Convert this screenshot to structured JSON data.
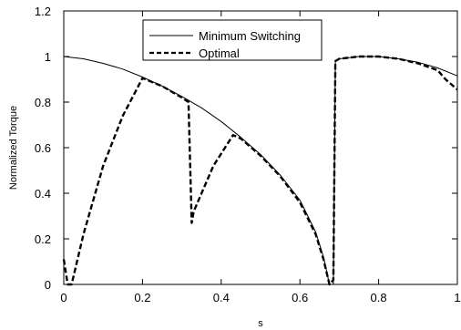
{
  "chart_data": {
    "type": "line",
    "xlabel": "s",
    "ylabel": "Normalized Torque",
    "xlim": [
      0,
      1
    ],
    "ylim": [
      0,
      1.2
    ],
    "xticks": [
      "0",
      "0.2",
      "0.4",
      "0.6",
      "0.8",
      "1"
    ],
    "yticks": [
      "0",
      "0.2",
      "0.4",
      "0.6",
      "0.8",
      "1",
      "1.2"
    ],
    "grid": false,
    "legend_position": "top-center",
    "series": [
      {
        "name": "Minimum Switching",
        "style": "solid",
        "color": "#000000",
        "points": [
          [
            0,
            1.0
          ],
          [
            0.05,
            0.99
          ],
          [
            0.1,
            0.97
          ],
          [
            0.15,
            0.945
          ],
          [
            0.2,
            0.91
          ],
          [
            0.25,
            0.87
          ],
          [
            0.3,
            0.825
          ],
          [
            0.35,
            0.775
          ],
          [
            0.4,
            0.715
          ],
          [
            0.45,
            0.645
          ],
          [
            0.5,
            0.57
          ],
          [
            0.55,
            0.48
          ],
          [
            0.6,
            0.37
          ],
          [
            0.64,
            0.23
          ],
          [
            0.66,
            0.12
          ],
          [
            0.675,
            0.0
          ],
          [
            0.685,
            0.0
          ],
          [
            0.69,
            0.98
          ],
          [
            0.7,
            0.99
          ],
          [
            0.75,
            1.0
          ],
          [
            0.8,
            1.0
          ],
          [
            0.85,
            0.99
          ],
          [
            0.9,
            0.975
          ],
          [
            0.95,
            0.95
          ],
          [
            1.0,
            0.915
          ]
        ]
      },
      {
        "name": "Optimal",
        "style": "dashed",
        "color": "#000000",
        "points": [
          [
            0,
            0.11
          ],
          [
            0.01,
            0.0
          ],
          [
            0.02,
            0.0
          ],
          [
            0.05,
            0.22
          ],
          [
            0.1,
            0.52
          ],
          [
            0.15,
            0.74
          ],
          [
            0.2,
            0.905
          ],
          [
            0.25,
            0.87
          ],
          [
            0.3,
            0.82
          ],
          [
            0.317,
            0.8
          ],
          [
            0.325,
            0.27
          ],
          [
            0.33,
            0.32
          ],
          [
            0.38,
            0.52
          ],
          [
            0.43,
            0.655
          ],
          [
            0.45,
            0.64
          ],
          [
            0.5,
            0.565
          ],
          [
            0.55,
            0.475
          ],
          [
            0.6,
            0.36
          ],
          [
            0.64,
            0.22
          ],
          [
            0.66,
            0.11
          ],
          [
            0.675,
            0.0
          ],
          [
            0.685,
            0.02
          ],
          [
            0.69,
            0.98
          ],
          [
            0.7,
            0.99
          ],
          [
            0.75,
            1.0
          ],
          [
            0.8,
            1.0
          ],
          [
            0.85,
            0.99
          ],
          [
            0.9,
            0.97
          ],
          [
            0.95,
            0.94
          ],
          [
            0.97,
            0.9
          ],
          [
            1.0,
            0.855
          ]
        ]
      }
    ]
  }
}
